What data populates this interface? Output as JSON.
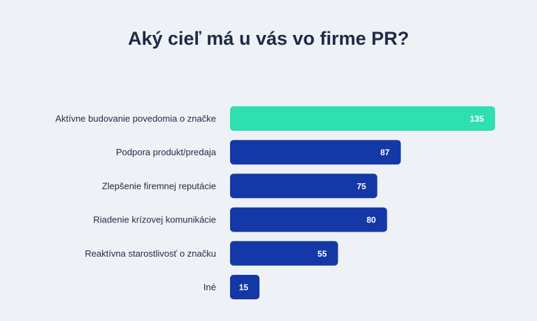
{
  "chart_data": {
    "type": "bar",
    "orientation": "horizontal",
    "title": "Aký cieľ má u vás vo firme PR?",
    "categories": [
      "Aktívne budovanie povedomia o značke",
      "Podpora produkt/predaja",
      "Zlepšenie firemnej reputácie",
      "Riadenie krízovej komunikácie",
      "Reaktívna starostlivosť o značku",
      "Iné"
    ],
    "values": [
      135,
      87,
      75,
      80,
      55,
      15
    ],
    "data_labels": [
      "135",
      "87",
      "75",
      "80",
      "55",
      "15"
    ],
    "xlim": [
      0,
      135
    ],
    "grid": false,
    "legend": "none",
    "colors": {
      "highlight": "#2ee0b0",
      "bar": "#1438a6",
      "text": "#1f2a44",
      "background": "#eef2f6"
    },
    "highlight_index": 0
  }
}
